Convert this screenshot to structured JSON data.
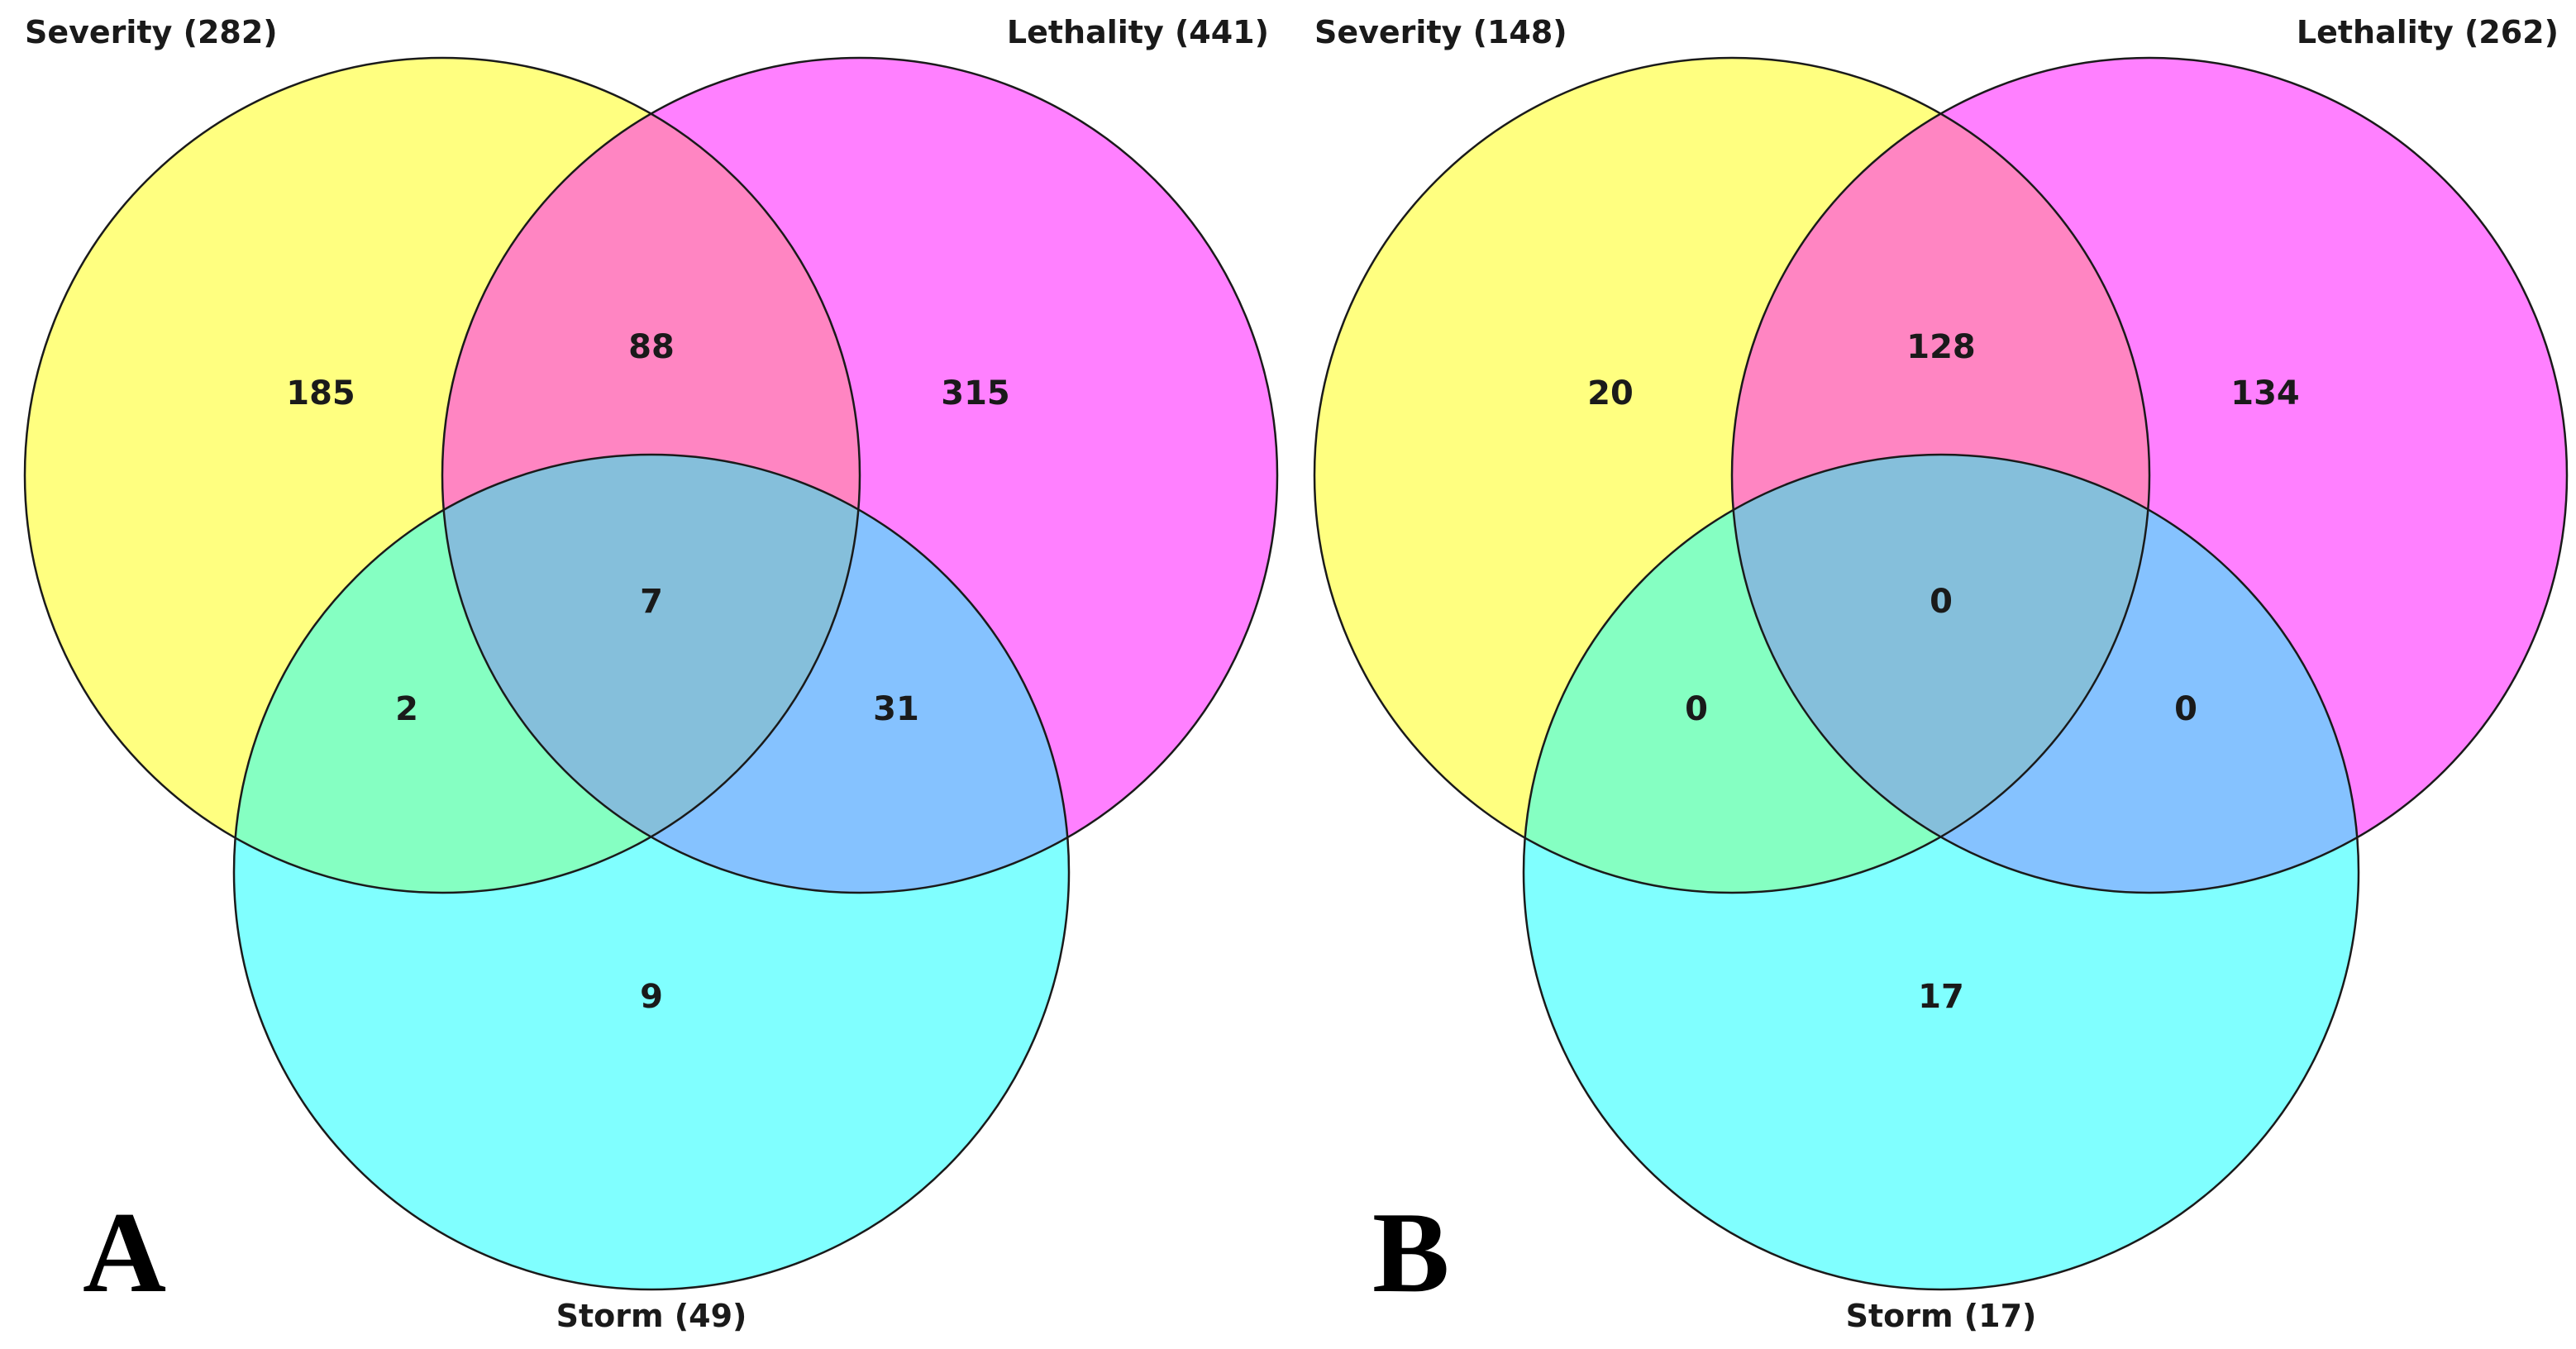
{
  "colors": {
    "set1": "#ffff80",
    "set2": "#ff80ff",
    "set3": "#80ffff",
    "set1_set2": "#ff85c2",
    "set1_set3": "#85ffc2",
    "set2_set3": "#85c2ff",
    "all": "#85bfdb",
    "outline": "#1a1a1a"
  },
  "panels": [
    {
      "letter": "A",
      "sets": {
        "severity": {
          "label": "Severity (282)"
        },
        "lethality": {
          "label": "Lethality (441)"
        },
        "storm": {
          "label": "Storm (49)"
        }
      },
      "regions": {
        "severity_only": "185",
        "lethality_only": "315",
        "storm_only": "9",
        "severity_lethality": "88",
        "severity_storm": "2",
        "lethality_storm": "31",
        "all_three": "7"
      }
    },
    {
      "letter": "B",
      "sets": {
        "severity": {
          "label": "Severity (148)"
        },
        "lethality": {
          "label": "Lethality (262)"
        },
        "storm": {
          "label": "Storm (17)"
        }
      },
      "regions": {
        "severity_only": "20",
        "lethality_only": "134",
        "storm_only": "17",
        "severity_lethality": "128",
        "severity_storm": "0",
        "lethality_storm": "0",
        "all_three": "0"
      }
    }
  ]
}
